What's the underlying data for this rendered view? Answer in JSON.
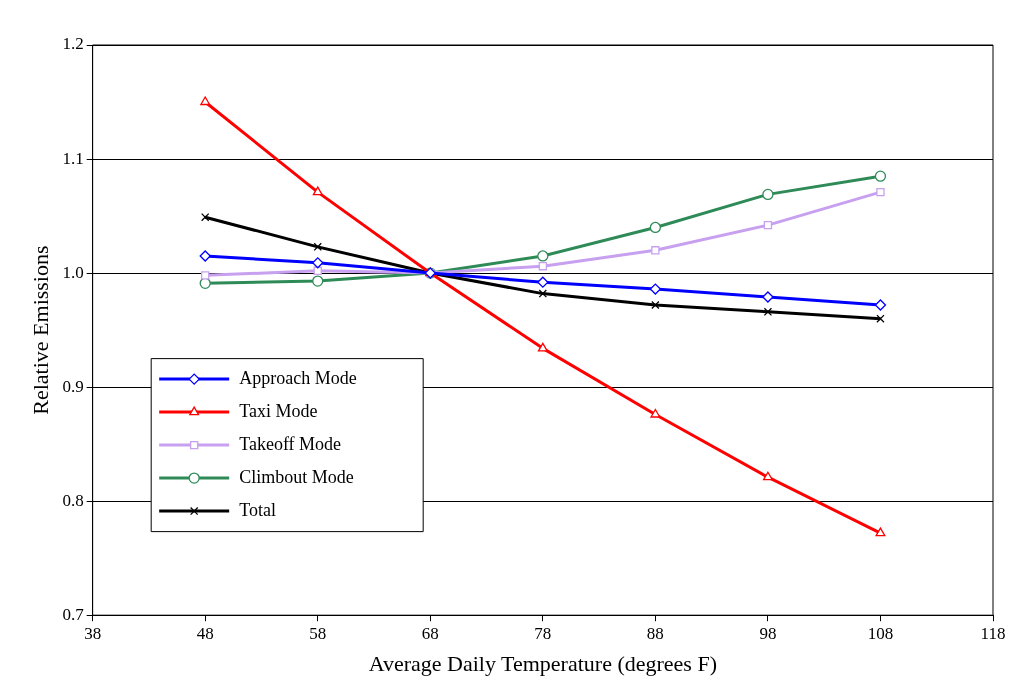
{
  "chart_data": {
    "type": "line",
    "xlabel": "Average Daily Temperature (degrees F)",
    "ylabel": "Relative Emissions",
    "x": [
      48,
      58,
      68,
      78,
      88,
      98,
      108
    ],
    "series": [
      {
        "name": "Approach Mode",
        "color": "#0000ff",
        "marker": "diamond",
        "values": [
          1.015,
          1.009,
          1.0,
          0.992,
          0.986,
          0.979,
          0.972
        ]
      },
      {
        "name": "Taxi Mode",
        "color": "#ff0000",
        "marker": "triangle",
        "values": [
          1.15,
          1.071,
          1.0,
          0.934,
          0.876,
          0.821,
          0.772
        ]
      },
      {
        "name": "Takeoff Mode",
        "color": "#c8a0f0",
        "marker": "square",
        "values": [
          0.998,
          1.002,
          1.0,
          1.006,
          1.02,
          1.042,
          1.071
        ]
      },
      {
        "name": "Climbout Mode",
        "color": "#2e8b57",
        "marker": "circle",
        "values": [
          0.991,
          0.993,
          1.0,
          1.015,
          1.04,
          1.069,
          1.085
        ]
      },
      {
        "name": "Total",
        "color": "#000000",
        "marker": "cross",
        "values": [
          1.049,
          1.023,
          1.0,
          0.982,
          0.972,
          0.966,
          0.96
        ]
      }
    ],
    "xlim": [
      38,
      118
    ],
    "xticks": [
      38,
      48,
      58,
      68,
      78,
      88,
      98,
      108,
      118
    ],
    "ylim": [
      0.7,
      1.2
    ],
    "yticks": [
      {
        "value": 0.7,
        "label": "0.7"
      },
      {
        "value": 0.8,
        "label": "0.8"
      },
      {
        "value": 0.9,
        "label": "0.9"
      },
      {
        "value": 1.0,
        "label": "1.0"
      },
      {
        "value": 1.1,
        "label": "1.1"
      },
      {
        "value": 1.2,
        "label": "1.2"
      }
    ],
    "grid": "y",
    "legend": "left",
    "line_style": "solid"
  }
}
